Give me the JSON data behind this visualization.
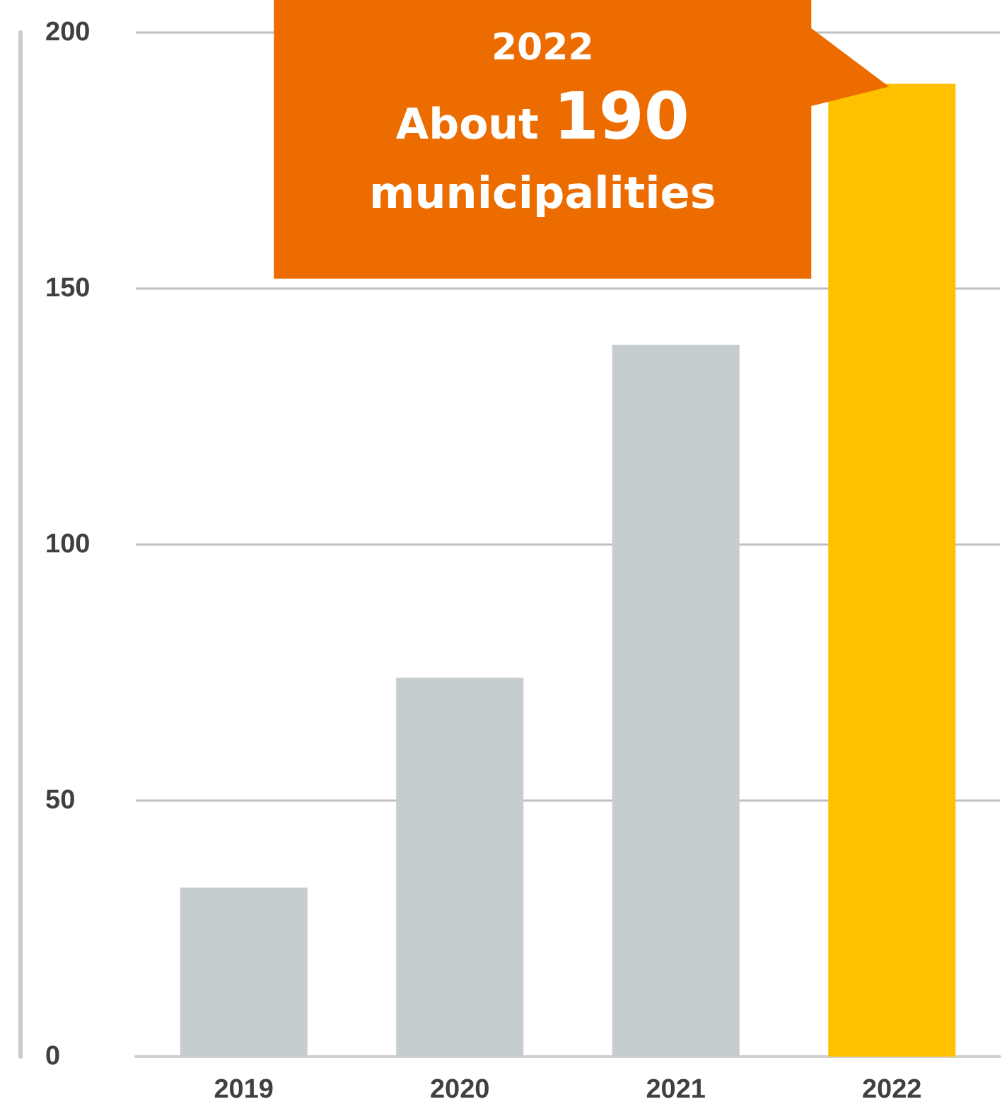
{
  "chart_data": {
    "type": "bar",
    "categories": [
      "2019",
      "2020",
      "2021",
      "2022"
    ],
    "values": [
      33,
      74,
      139,
      190
    ],
    "colors": [
      "#c6cdd1",
      "#c6cdd1",
      "#c6cdd1",
      "#ffc000"
    ],
    "ylim": [
      0,
      200
    ],
    "yticks": [
      0,
      50,
      100,
      150,
      200
    ],
    "grid": "y",
    "annotations": [
      {
        "text": "2022\nAbout 190\nmunicipalities",
        "x": "2022",
        "y": 190
      }
    ]
  }
}
